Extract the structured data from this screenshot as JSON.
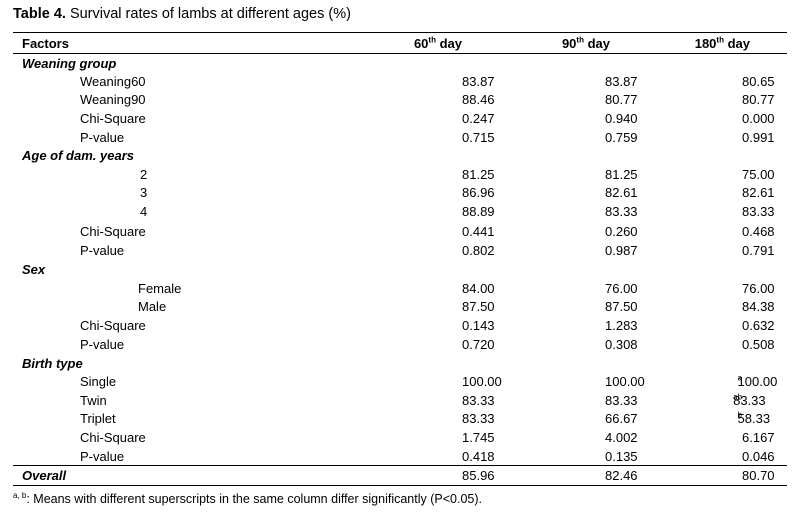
{
  "table": {
    "caption_label": "Table 4.",
    "caption_text": " Survival rates of lambs at different ages (%)",
    "headers": {
      "factors": "Factors",
      "d60": "60",
      "d60_sup": "th",
      "d60_suffix": " day",
      "d90": "90",
      "d90_sup": "th",
      "d90_suffix": " day",
      "d180": "180",
      "d180_sup": "th",
      "d180_suffix": " day"
    },
    "rows": [
      {
        "kind": "group",
        "label": "Weaning group"
      },
      {
        "kind": "item",
        "label": "Weaning60",
        "v60": "83.87",
        "v90": "83.87",
        "v180": "80.65"
      },
      {
        "kind": "item",
        "label": "Weaning90",
        "v60": "88.46",
        "v90": "80.77",
        "v180": "80.77"
      },
      {
        "kind": "item",
        "label": "Chi-Square",
        "v60": "0.247",
        "v90": "0.940",
        "v180": "0.000"
      },
      {
        "kind": "item",
        "label": "P-value",
        "v60": "0.715",
        "v90": "0.759",
        "v180": "0.991"
      },
      {
        "kind": "group",
        "label": "Age of dam. years"
      },
      {
        "kind": "item",
        "label": "2",
        "v60": "81.25",
        "v90": "81.25",
        "v180": "75.00"
      },
      {
        "kind": "item",
        "label": "3",
        "v60": "86.96",
        "v90": "82.61",
        "v180": "82.61"
      },
      {
        "kind": "item",
        "label": "4",
        "v60": "88.89",
        "v90": "83.33",
        "v180": "83.33"
      },
      {
        "kind": "item",
        "label": "Chi-Square",
        "v60": "0.441",
        "v90": "0.260",
        "v180": "0.468"
      },
      {
        "kind": "item",
        "label": "P-value",
        "v60": "0.802",
        "v90": "0.987",
        "v180": "0.791"
      },
      {
        "kind": "group",
        "label": "Sex"
      },
      {
        "kind": "item",
        "label": "Female",
        "v60": "84.00",
        "v90": "76.00",
        "v180": "76.00"
      },
      {
        "kind": "item",
        "label": "Male",
        "v60": "87.50",
        "v90": "87.50",
        "v180": "84.38"
      },
      {
        "kind": "item",
        "label": "Chi-Square",
        "v60": "0.143",
        "v90": "1.283",
        "v180": "0.632"
      },
      {
        "kind": "item",
        "label": "P-value",
        "v60": "0.720",
        "v90": "0.308",
        "v180": "0.508"
      },
      {
        "kind": "group",
        "label": "Birth type"
      },
      {
        "kind": "item",
        "label": "Single",
        "v60": "100.00",
        "v90": "100.00",
        "v180": "100.00",
        "v180_sup": "a"
      },
      {
        "kind": "item",
        "label": "Twin",
        "v60": "83.33",
        "v90": "83.33",
        "v180": "83.33",
        "v180_sup": "ab"
      },
      {
        "kind": "item",
        "label": "Triplet",
        "v60": "83.33",
        "v90": "66.67",
        "v180": "58.33",
        "v180_sup": "b"
      },
      {
        "kind": "item",
        "label": "Chi-Square",
        "v60": "1.745",
        "v90": "4.002",
        "v180": "6.167"
      },
      {
        "kind": "item",
        "label": "P-value",
        "v60": "0.418",
        "v90": "0.135",
        "v180": "0.046"
      },
      {
        "kind": "overall",
        "label": "Overall",
        "v60": "85.96",
        "v90": "82.46",
        "v180": "80.70"
      }
    ],
    "footnote_sup": "a, b",
    "footnote_text": ": Means with different superscripts in the same column differ significantly (P<0.05)."
  }
}
